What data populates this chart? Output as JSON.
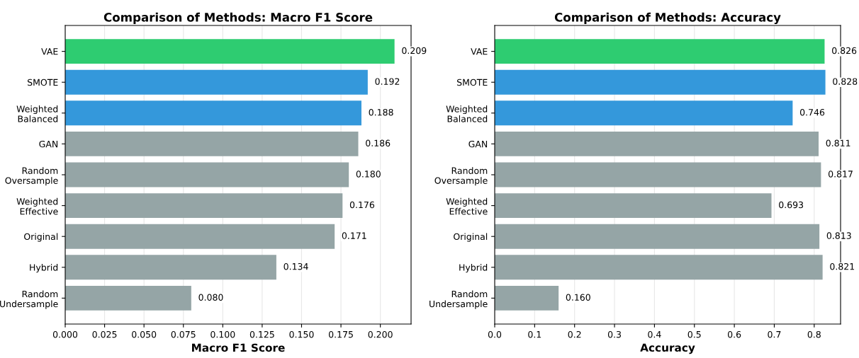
{
  "chart_data": [
    {
      "type": "bar",
      "orientation": "horizontal",
      "title": "Comparison of Methods: Macro F1 Score",
      "xlabel": "Macro F1 Score",
      "categories": [
        "VAE",
        "SMOTE",
        "Weighted\nBalanced",
        "GAN",
        "Random\nOversample",
        "Weighted\nEffective",
        "Original",
        "Hybrid",
        "Random\nUndersample"
      ],
      "values": [
        0.209,
        0.192,
        0.188,
        0.186,
        0.18,
        0.176,
        0.171,
        0.134,
        0.08
      ],
      "value_labels": [
        "0.209",
        "0.192",
        "0.188",
        "0.186",
        "0.180",
        "0.176",
        "0.171",
        "0.134",
        "0.080"
      ],
      "colors": [
        "#2ecc71",
        "#3498db",
        "#3498db",
        "#95a5a6",
        "#95a5a6",
        "#95a5a6",
        "#95a5a6",
        "#95a5a6",
        "#95a5a6"
      ],
      "xlim": [
        0,
        0.2195
      ],
      "xticks": [
        {
          "value": 0,
          "label": "0.000"
        },
        {
          "value": 0.025,
          "label": "0.025"
        },
        {
          "value": 0.05,
          "label": "0.050"
        },
        {
          "value": 0.075,
          "label": "0.075"
        },
        {
          "value": 0.1,
          "label": "0.100"
        },
        {
          "value": 0.125,
          "label": "0.125"
        },
        {
          "value": 0.15,
          "label": "0.150"
        },
        {
          "value": 0.175,
          "label": "0.175"
        },
        {
          "value": 0.2,
          "label": "0.200"
        }
      ],
      "grid": "x"
    },
    {
      "type": "bar",
      "orientation": "horizontal",
      "title": "Comparison of Methods: Accuracy",
      "xlabel": "Accuracy",
      "categories": [
        "VAE",
        "SMOTE",
        "Weighted\nBalanced",
        "GAN",
        "Random\nOversample",
        "Weighted\nEffective",
        "Original",
        "Hybrid",
        "Random\nUndersample"
      ],
      "values": [
        0.826,
        0.828,
        0.746,
        0.811,
        0.817,
        0.693,
        0.813,
        0.821,
        0.16
      ],
      "value_labels": [
        "0.826",
        "0.828",
        "0.746",
        "0.811",
        "0.817",
        "0.693",
        "0.813",
        "0.821",
        "0.160"
      ],
      "colors": [
        "#2ecc71",
        "#3498db",
        "#3498db",
        "#95a5a6",
        "#95a5a6",
        "#95a5a6",
        "#95a5a6",
        "#95a5a6",
        "#95a5a6"
      ],
      "xlim": [
        0,
        0.866
      ],
      "xticks": [
        {
          "value": 0,
          "label": "0.0"
        },
        {
          "value": 0.1,
          "label": "0.1"
        },
        {
          "value": 0.2,
          "label": "0.2"
        },
        {
          "value": 0.3,
          "label": "0.3"
        },
        {
          "value": 0.4,
          "label": "0.4"
        },
        {
          "value": 0.5,
          "label": "0.5"
        },
        {
          "value": 0.6,
          "label": "0.6"
        },
        {
          "value": 0.7,
          "label": "0.7"
        },
        {
          "value": 0.8,
          "label": "0.8"
        }
      ],
      "grid": "x"
    }
  ]
}
